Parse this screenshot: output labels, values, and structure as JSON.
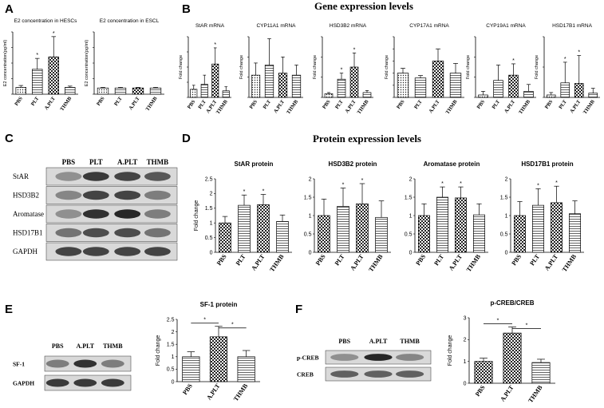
{
  "panels": {
    "A": {
      "letter": "A"
    },
    "B": {
      "letter": "B",
      "title": "Gene expression levels"
    },
    "C": {
      "letter": "C"
    },
    "D": {
      "letter": "D",
      "title": "Protein expression levels"
    },
    "E": {
      "letter": "E"
    },
    "F": {
      "letter": "F"
    }
  },
  "blots": {
    "C": {
      "lanes": [
        "PBS",
        "PLT",
        "A.PLT",
        "THMB"
      ],
      "rows": [
        {
          "label": "StAR",
          "intensity": [
            0.35,
            0.8,
            0.75,
            0.65
          ]
        },
        {
          "label": "HSD3B2",
          "intensity": [
            0.4,
            0.75,
            0.75,
            0.45
          ]
        },
        {
          "label": "Aromatase",
          "intensity": [
            0.35,
            0.85,
            0.9,
            0.45
          ]
        },
        {
          "label": "HSD17B1",
          "intensity": [
            0.5,
            0.7,
            0.7,
            0.5
          ]
        },
        {
          "label": "GAPDH",
          "intensity": [
            0.75,
            0.75,
            0.75,
            0.75
          ]
        }
      ]
    },
    "E": {
      "lanes": [
        "PBS",
        "A.PLT",
        "THMB"
      ],
      "rows": [
        {
          "label": "SF-1",
          "intensity": [
            0.45,
            0.85,
            0.45
          ]
        },
        {
          "label": "GAPDH",
          "intensity": [
            0.8,
            0.8,
            0.8
          ]
        }
      ]
    },
    "F": {
      "lanes": [
        "PBS",
        "A.PLT",
        "THMB"
      ],
      "rows": [
        {
          "label": "p-CREB",
          "intensity": [
            0.35,
            0.9,
            0.4
          ]
        },
        {
          "label": "CREB",
          "intensity": [
            0.6,
            0.6,
            0.6
          ]
        }
      ]
    }
  },
  "chart_data": [
    {
      "id": "A1",
      "type": "bar",
      "title": "E2 concentration in HESCs",
      "ylabel": "E2 concentration(pg/ml)",
      "categories": [
        "PBS",
        "PLT",
        "A.PLT",
        "THMB"
      ],
      "values": [
        22,
        80,
        120,
        22
      ],
      "errors": [
        6,
        35,
        65,
        4
      ],
      "sig": [
        "",
        "*",
        "*",
        ""
      ],
      "ylim": [
        0,
        200
      ],
      "patterns": [
        "dots",
        "hlines",
        "check",
        "hlines"
      ]
    },
    {
      "id": "A2",
      "type": "bar",
      "title": "E2 concentration in ESCL",
      "ylabel": "E2 concentration(pg/ml)",
      "categories": [
        "PBS",
        "PLT",
        "A.PLT",
        "THMB"
      ],
      "values": [
        20,
        20,
        20,
        20
      ],
      "errors": [
        2,
        2,
        2,
        2
      ],
      "sig": [
        "",
        "",
        "",
        ""
      ],
      "ylim": [
        0,
        200
      ],
      "patterns": [
        "dots",
        "hlines",
        "check",
        "hlines"
      ]
    },
    {
      "id": "B1",
      "type": "bar",
      "title": "StAR mRNA",
      "ylabel": "Fold change",
      "categories": [
        "PBS",
        "PLT",
        "A.PLT",
        "THMB"
      ],
      "values": [
        0.8,
        1.3,
        3.3,
        0.65
      ],
      "errors": [
        0.4,
        0.9,
        1.6,
        0.4
      ],
      "sig": [
        "",
        "",
        "*",
        ""
      ],
      "ylim": [
        0,
        6
      ],
      "patterns": [
        "dots",
        "hlines",
        "check",
        "hlines"
      ]
    },
    {
      "id": "B2",
      "type": "bar",
      "title": "CYP11A1 mRNA",
      "ylabel": "Fold change",
      "categories": [
        "PBS",
        "PLT",
        "A.PLT",
        "THMB"
      ],
      "values": [
        1.1,
        1.6,
        1.2,
        1.1
      ],
      "errors": [
        0.6,
        1.3,
        0.8,
        0.5
      ],
      "sig": [
        "",
        "",
        "",
        ""
      ],
      "ylim": [
        0,
        3
      ],
      "patterns": [
        "dots",
        "hlines",
        "check",
        "hlines"
      ]
    },
    {
      "id": "B3",
      "type": "bar",
      "title": "HSD3B2 mRNA",
      "ylabel": "Fold change",
      "categories": [
        "PBS",
        "PLT",
        "A.PLT",
        "THMB"
      ],
      "values": [
        0.9,
        4.5,
        7.5,
        1.2
      ],
      "errors": [
        0.3,
        1.5,
        3.5,
        0.5
      ],
      "sig": [
        "",
        "*",
        "*",
        ""
      ],
      "ylim": [
        0,
        15
      ],
      "patterns": [
        "dots",
        "hlines",
        "check",
        "hlines"
      ]
    },
    {
      "id": "B4",
      "type": "bar",
      "title": "CYP17A1 mRNA",
      "ylabel": "Fold change",
      "categories": [
        "PBS",
        "PLT",
        "A.PLT",
        "THMB"
      ],
      "values": [
        1.0,
        0.8,
        1.5,
        1.0
      ],
      "errors": [
        0.2,
        0.1,
        0.5,
        0.4
      ],
      "sig": [
        "",
        "",
        "",
        ""
      ],
      "ylim": [
        0,
        2.5
      ],
      "patterns": [
        "dots",
        "hlines",
        "check",
        "hlines"
      ]
    },
    {
      "id": "B5",
      "type": "bar",
      "title": "CYP19A1 mRNA",
      "ylabel": "Fold change",
      "categories": [
        "PBS",
        "PLT",
        "A.PLT",
        "THMB"
      ],
      "values": [
        0.6,
        4.2,
        5.5,
        1.5
      ],
      "errors": [
        0.9,
        3.8,
        2.8,
        1.7
      ],
      "sig": [
        "",
        "",
        "*",
        ""
      ],
      "ylim": [
        0,
        15
      ],
      "patterns": [
        "dots",
        "hlines",
        "check",
        "hlines"
      ]
    },
    {
      "id": "B6",
      "type": "bar",
      "title": "HSD17B1 mRNA",
      "ylabel": "Fold change",
      "categories": [
        "PBS",
        "PLT",
        "A.PLT",
        "THMB"
      ],
      "values": [
        0.4,
        2.4,
        2.3,
        0.7
      ],
      "errors": [
        0.4,
        3.4,
        4.6,
        0.8
      ],
      "sig": [
        "",
        "*",
        "*",
        ""
      ],
      "ylim": [
        0,
        10
      ],
      "patterns": [
        "dots",
        "hlines",
        "check",
        "hlines"
      ]
    },
    {
      "id": "D1",
      "type": "bar",
      "title": "StAR protein",
      "ylabel": "Fold change",
      "categories": [
        "PBS",
        "PLT",
        "A.PLT",
        "THMB"
      ],
      "values": [
        1.0,
        1.6,
        1.62,
        1.05
      ],
      "errors": [
        0.22,
        0.35,
        0.35,
        0.22
      ],
      "sig": [
        "",
        "*",
        "*",
        ""
      ],
      "ylim": [
        0,
        2.5
      ],
      "ticks": [
        0,
        0.5,
        1.0,
        1.5,
        2.0,
        2.5
      ],
      "patterns": [
        "check",
        "hlines",
        "check",
        "hlines"
      ]
    },
    {
      "id": "D2",
      "type": "bar",
      "title": "HSD3B2 protein",
      "ylabel": "",
      "categories": [
        "PBS",
        "PLT",
        "A.PLT",
        "THMB"
      ],
      "values": [
        1.0,
        1.25,
        1.32,
        0.95
      ],
      "errors": [
        0.45,
        0.5,
        0.55,
        0.45
      ],
      "sig": [
        "",
        "*",
        "*",
        ""
      ],
      "ylim": [
        0,
        2.0
      ],
      "ticks": [
        0,
        0.5,
        1.0,
        1.5,
        2.0
      ],
      "patterns": [
        "check",
        "hlines",
        "check",
        "hlines"
      ]
    },
    {
      "id": "D3",
      "type": "bar",
      "title": "Aromatase protein",
      "ylabel": "",
      "categories": [
        "PBS",
        "PLT",
        "A.PLT",
        "THMB"
      ],
      "values": [
        1.0,
        1.5,
        1.48,
        1.02
      ],
      "errors": [
        0.32,
        0.28,
        0.3,
        0.3
      ],
      "sig": [
        "",
        "*",
        "*",
        ""
      ],
      "ylim": [
        0,
        2.0
      ],
      "ticks": [
        0,
        0.5,
        1.0,
        1.5,
        2.0
      ],
      "patterns": [
        "check",
        "hlines",
        "check",
        "hlines"
      ]
    },
    {
      "id": "D4",
      "type": "bar",
      "title": "HSD17B1 protein",
      "ylabel": "",
      "categories": [
        "PBS",
        "PLT",
        "A.PLT",
        "THMB"
      ],
      "values": [
        1.0,
        1.28,
        1.35,
        1.05
      ],
      "errors": [
        0.38,
        0.45,
        0.45,
        0.35
      ],
      "sig": [
        "",
        "*",
        "*",
        ""
      ],
      "ylim": [
        0,
        2.0
      ],
      "ticks": [
        0,
        0.5,
        1.0,
        1.5,
        2.0
      ],
      "patterns": [
        "check",
        "hlines",
        "check",
        "hlines"
      ]
    },
    {
      "id": "E",
      "type": "bar",
      "title": "SF-1 protein",
      "ylabel": "Fold change",
      "categories": [
        "PBS",
        "A.PLT",
        "THMB"
      ],
      "values": [
        1.0,
        1.8,
        1.0
      ],
      "errors": [
        0.2,
        0.42,
        0.25
      ],
      "sig": [
        "",
        "",
        ""
      ],
      "ylim": [
        0,
        2.5
      ],
      "ticks": [
        0,
        0.5,
        1.0,
        1.5,
        2.0,
        2.5
      ],
      "brackets": [
        {
          "from": 0,
          "to": 1,
          "label": "*"
        },
        {
          "from": 1,
          "to": 2,
          "label": "*"
        }
      ],
      "patterns": [
        "hlines",
        "check",
        "hlines"
      ]
    },
    {
      "id": "F",
      "type": "bar",
      "title": "p-CREB/CREB",
      "ylabel": "Fold change",
      "categories": [
        "PBS",
        "A.PLT",
        "THMB"
      ],
      "values": [
        1.0,
        2.3,
        0.95
      ],
      "errors": [
        0.15,
        0.28,
        0.15
      ],
      "sig": [
        "",
        "",
        ""
      ],
      "ylim": [
        0,
        3
      ],
      "ticks": [
        0,
        1,
        2,
        3
      ],
      "brackets": [
        {
          "from": 0,
          "to": 1,
          "label": "*"
        },
        {
          "from": 1,
          "to": 2,
          "label": "*"
        }
      ],
      "patterns": [
        "check",
        "check",
        "hlines"
      ]
    }
  ]
}
